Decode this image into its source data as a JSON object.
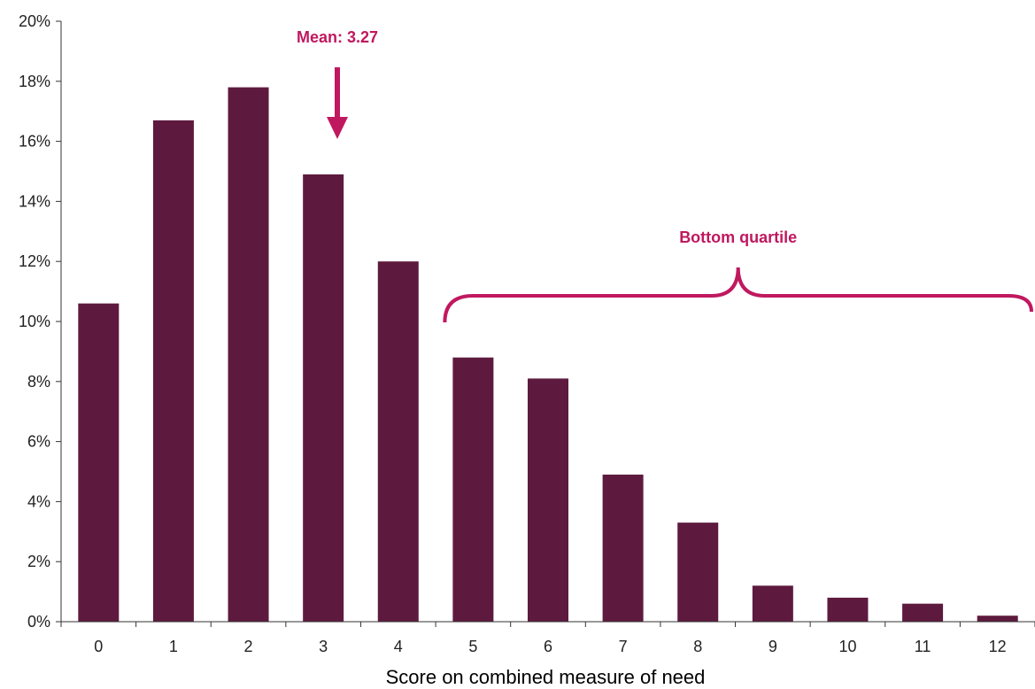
{
  "chart_data": {
    "type": "bar",
    "title": "",
    "xlabel": "Score on combined measure of need",
    "ylabel": "",
    "categories": [
      "0",
      "1",
      "2",
      "3",
      "4",
      "5",
      "6",
      "7",
      "8",
      "9",
      "10",
      "11",
      "12"
    ],
    "values": [
      10.6,
      16.7,
      17.8,
      14.9,
      12.0,
      8.8,
      8.1,
      4.9,
      3.3,
      1.2,
      0.8,
      0.6,
      0.2
    ],
    "ylim": [
      0,
      20
    ],
    "yticks": [
      "0%",
      "2%",
      "4%",
      "6%",
      "8%",
      "10%",
      "12%",
      "14%",
      "16%",
      "18%",
      "20%"
    ],
    "grid": false,
    "legend": "none",
    "bar_color": "#5e1a3e",
    "annotation_color": "#c0185f",
    "annotations": {
      "mean": {
        "text": "Mean: 3.27",
        "x": 3.27
      },
      "bottom_quartile": {
        "text": "Bottom quartile",
        "from": 5,
        "to": 12
      }
    }
  }
}
